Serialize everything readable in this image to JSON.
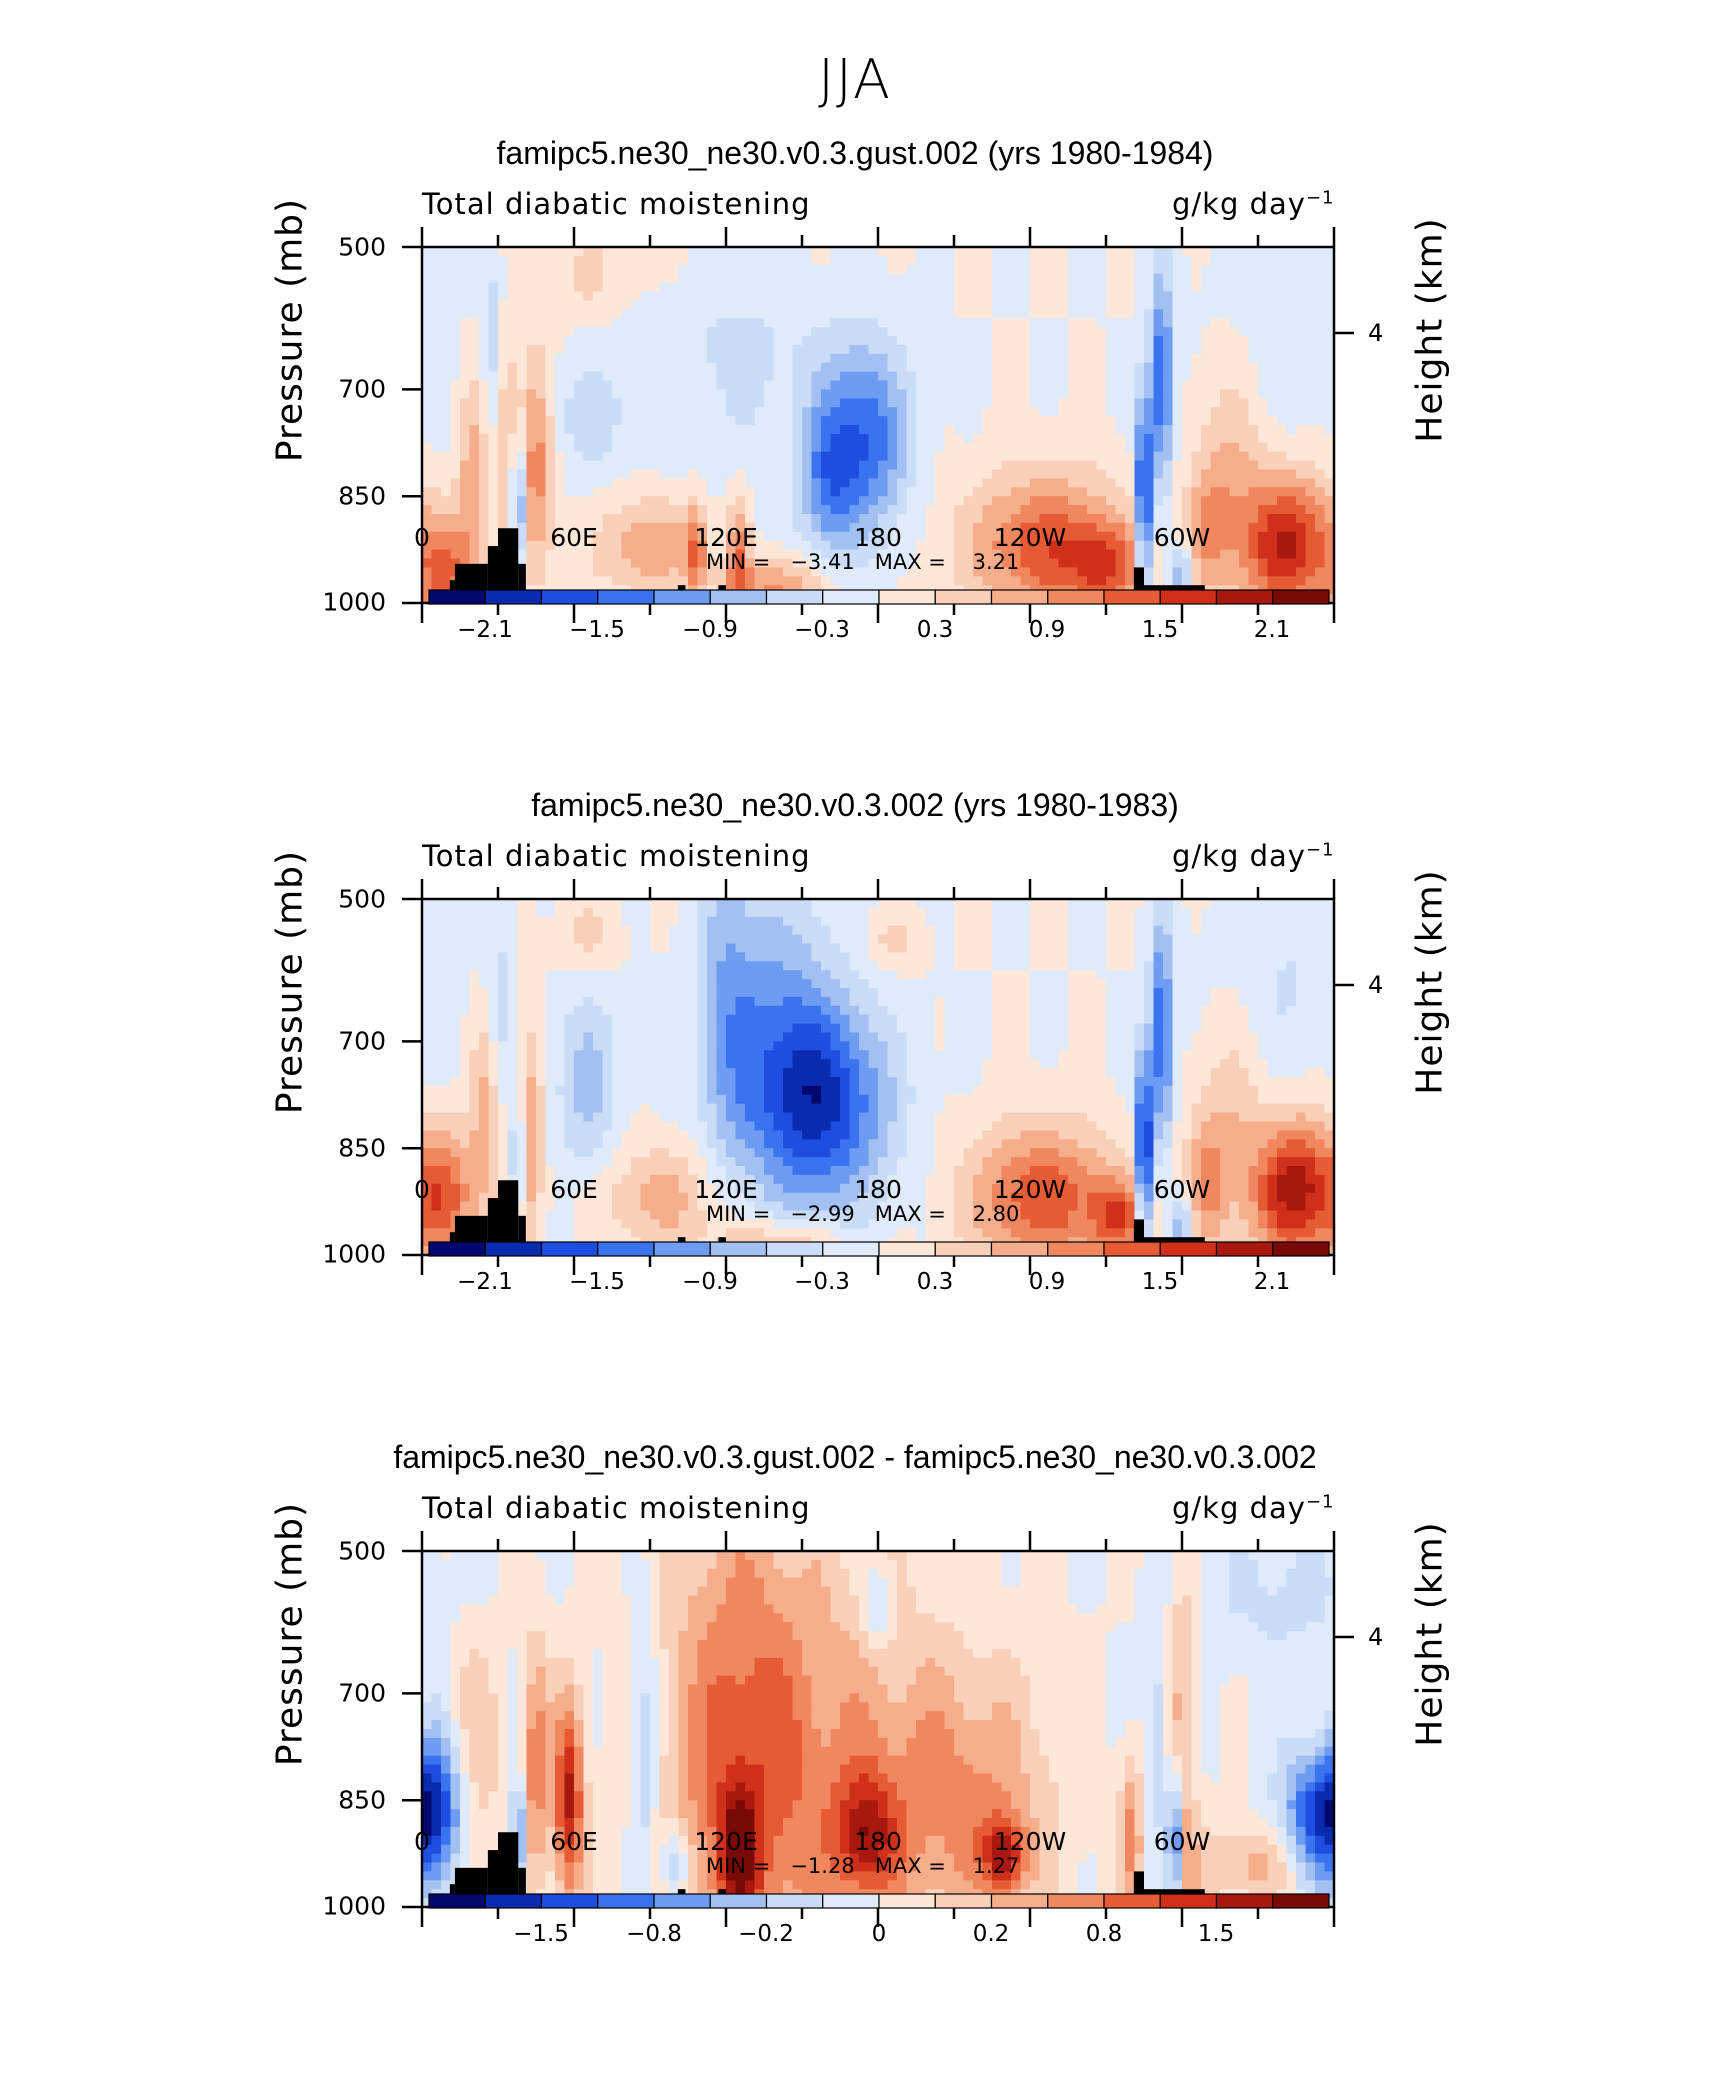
{
  "figure": {
    "title": "JJA"
  },
  "chart_data": [
    {
      "type": "heatmap",
      "title": "famipc5.ne30_ne30.v0.3.gust.002 (yrs 1980-1984)",
      "subtitle": "Total diabatic moistening",
      "units": "g/kg day",
      "units_exp": "−1",
      "xlabel": "",
      "ylabel": "Pressure (mb)",
      "ylabel_right": "Height (km)",
      "xlim": [
        0,
        360
      ],
      "ylim": [
        1000,
        500
      ],
      "x_ticks": [
        "0",
        "60E",
        "120E",
        "180",
        "120W",
        "60W"
      ],
      "y_ticks": [
        "500",
        "700",
        "850",
        "1000"
      ],
      "y_ticks_right": [
        "4"
      ],
      "min_label": "MIN =",
      "min_value": "−3.41",
      "max_label": "MAX =",
      "max_value": "3.21",
      "colorbar_labels": [
        "−2.1",
        "−1.5",
        "−0.9",
        "−0.3",
        "0.3",
        "0.9",
        "1.5",
        "2.1"
      ],
      "colorbar_colors": [
        "#04076e",
        "#0a2ab0",
        "#1e4ee0",
        "#3a73f0",
        "#6d9cf2",
        "#a3c0f2",
        "#cadcf7",
        "#dfeafb",
        "#fde7d8",
        "#fbd0b8",
        "#f6ad8c",
        "#f0875e",
        "#e65a34",
        "#d0301a",
        "#a8180f",
        "#7a0806"
      ],
      "field_stats": {
        "min": -3.41,
        "max": 3.21
      },
      "features": [
        {
          "lon": 175,
          "p": 770,
          "value": -2.0,
          "sx": 12,
          "sp": 95
        },
        {
          "lon": 160,
          "p": 830,
          "value": -1.3,
          "sx": 8,
          "sp": 80
        },
        {
          "lon": 125,
          "p": 600,
          "value": -0.6,
          "sx": 25,
          "sp": 150
        },
        {
          "lon": 65,
          "p": 740,
          "value": -0.6,
          "sx": 14,
          "sp": 60
        },
        {
          "lon": 28,
          "p": 640,
          "value": -0.7,
          "sx": 3,
          "sp": 90
        },
        {
          "lon": 38,
          "p": 860,
          "value": -2.2,
          "sx": 2,
          "sp": 60
        },
        {
          "lon": 285,
          "p": 860,
          "value": -3.2,
          "sx": 2,
          "sp": 110
        },
        {
          "lon": 292,
          "p": 690,
          "value": -2.2,
          "sx": 3,
          "sp": 110
        },
        {
          "lon": 300,
          "p": 960,
          "value": -1.4,
          "sx": 3,
          "sp": 30
        },
        {
          "lon": 340,
          "p": 620,
          "value": -0.4,
          "sx": 20,
          "sp": 120
        },
        {
          "lon": 247,
          "p": 920,
          "value": 2.0,
          "sx": 22,
          "sp": 70
        },
        {
          "lon": 270,
          "p": 950,
          "value": 1.4,
          "sx": 10,
          "sp": 40
        },
        {
          "lon": 342,
          "p": 920,
          "value": 2.6,
          "sx": 13,
          "sp": 70
        },
        {
          "lon": 10,
          "p": 960,
          "value": 1.6,
          "sx": 8,
          "sp": 60
        },
        {
          "lon": 45,
          "p": 800,
          "value": 1.6,
          "sx": 5,
          "sp": 110
        },
        {
          "lon": 33,
          "p": 770,
          "value": 0.9,
          "sx": 3,
          "sp": 120
        },
        {
          "lon": 20,
          "p": 820,
          "value": 1.1,
          "sx": 4,
          "sp": 100
        },
        {
          "lon": 90,
          "p": 920,
          "value": 1.2,
          "sx": 15,
          "sp": 50
        },
        {
          "lon": 108,
          "p": 930,
          "value": 1.4,
          "sx": 3,
          "sp": 50
        },
        {
          "lon": 125,
          "p": 930,
          "value": 1.5,
          "sx": 3,
          "sp": 60
        },
        {
          "lon": 140,
          "p": 980,
          "value": 1.4,
          "sx": 14,
          "sp": 30
        },
        {
          "lon": 310,
          "p": 900,
          "value": 1.0,
          "sx": 6,
          "sp": 70
        },
        {
          "lon": 320,
          "p": 800,
          "value": 0.8,
          "sx": 10,
          "sp": 120
        },
        {
          "lon": 120,
          "p": 520,
          "value": 0.4,
          "sx": 30,
          "sp": 60
        },
        {
          "lon": 65,
          "p": 540,
          "value": 0.5,
          "sx": 10,
          "sp": 40
        }
      ]
    },
    {
      "type": "heatmap",
      "title": "famipc5.ne30_ne30.v0.3.002 (yrs 1980-1983)",
      "subtitle": "Total diabatic moistening",
      "units": "g/kg day",
      "units_exp": "−1",
      "xlabel": "",
      "ylabel": "Pressure (mb)",
      "ylabel_right": "Height (km)",
      "xlim": [
        0,
        360
      ],
      "ylim": [
        1000,
        500
      ],
      "x_ticks": [
        "0",
        "60E",
        "120E",
        "180",
        "120W",
        "60W"
      ],
      "y_ticks": [
        "500",
        "700",
        "850",
        "1000"
      ],
      "y_ticks_right": [
        "4"
      ],
      "min_label": "MIN =",
      "min_value": "−2.99",
      "max_label": "MAX =",
      "max_value": "2.80",
      "colorbar_labels": [
        "−2.1",
        "−1.5",
        "−0.9",
        "−0.3",
        "0.3",
        "0.9",
        "1.5",
        "2.1"
      ],
      "colorbar_colors": [
        "#04076e",
        "#0a2ab0",
        "#1e4ee0",
        "#3a73f0",
        "#6d9cf2",
        "#a3c0f2",
        "#cadcf7",
        "#dfeafb",
        "#fde7d8",
        "#fbd0b8",
        "#f6ad8c",
        "#f0875e",
        "#e65a34",
        "#d0301a",
        "#a8180f",
        "#7a0806"
      ],
      "field_stats": {
        "min": -2.99,
        "max": 2.8
      },
      "features": [
        {
          "lon": 160,
          "p": 790,
          "value": -2.0,
          "sx": 18,
          "sp": 100
        },
        {
          "lon": 140,
          "p": 700,
          "value": -1.2,
          "sx": 16,
          "sp": 150
        },
        {
          "lon": 120,
          "p": 640,
          "value": -0.8,
          "sx": 8,
          "sp": 180
        },
        {
          "lon": 65,
          "p": 760,
          "value": -0.9,
          "sx": 9,
          "sp": 90
        },
        {
          "lon": 30,
          "p": 650,
          "value": -0.6,
          "sx": 4,
          "sp": 100
        },
        {
          "lon": 38,
          "p": 860,
          "value": -1.6,
          "sx": 2,
          "sp": 60
        },
        {
          "lon": 285,
          "p": 860,
          "value": -3.0,
          "sx": 2,
          "sp": 100
        },
        {
          "lon": 292,
          "p": 690,
          "value": -2.0,
          "sx": 3,
          "sp": 110
        },
        {
          "lon": 300,
          "p": 960,
          "value": -1.2,
          "sx": 3,
          "sp": 30
        },
        {
          "lon": 340,
          "p": 620,
          "value": -0.4,
          "sx": 20,
          "sp": 120
        },
        {
          "lon": 245,
          "p": 920,
          "value": 1.8,
          "sx": 20,
          "sp": 70
        },
        {
          "lon": 275,
          "p": 950,
          "value": 1.4,
          "sx": 8,
          "sp": 40
        },
        {
          "lon": 345,
          "p": 910,
          "value": 2.5,
          "sx": 12,
          "sp": 70
        },
        {
          "lon": 10,
          "p": 920,
          "value": 1.5,
          "sx": 8,
          "sp": 70
        },
        {
          "lon": 42,
          "p": 830,
          "value": 1.2,
          "sx": 4,
          "sp": 100
        },
        {
          "lon": 25,
          "p": 800,
          "value": 0.9,
          "sx": 4,
          "sp": 110
        },
        {
          "lon": 95,
          "p": 920,
          "value": 0.9,
          "sx": 18,
          "sp": 50
        },
        {
          "lon": 140,
          "p": 985,
          "value": 1.0,
          "sx": 18,
          "sp": 25
        },
        {
          "lon": 310,
          "p": 900,
          "value": 1.0,
          "sx": 6,
          "sp": 70
        },
        {
          "lon": 320,
          "p": 800,
          "value": 0.6,
          "sx": 10,
          "sp": 120
        },
        {
          "lon": 65,
          "p": 550,
          "value": 0.5,
          "sx": 8,
          "sp": 40
        },
        {
          "lon": 185,
          "p": 560,
          "value": 0.5,
          "sx": 8,
          "sp": 30
        }
      ]
    },
    {
      "type": "heatmap",
      "title": "famipc5.ne30_ne30.v0.3.gust.002 - famipc5.ne30_ne30.v0.3.002",
      "subtitle": "Total diabatic moistening",
      "units": "g/kg day",
      "units_exp": "−1",
      "xlabel": "",
      "ylabel": "Pressure (mb)",
      "ylabel_right": "Height (km)",
      "xlim": [
        0,
        360
      ],
      "ylim": [
        1000,
        500
      ],
      "x_ticks": [
        "0",
        "60E",
        "120E",
        "180",
        "120W",
        "60W"
      ],
      "y_ticks": [
        "500",
        "700",
        "850",
        "1000"
      ],
      "y_ticks_right": [
        "4"
      ],
      "min_label": "MIN =",
      "min_value": "−1.28",
      "max_label": "MAX =",
      "max_value": "1.27",
      "colorbar_labels": [
        "−1.5",
        "−0.8",
        "−0.2",
        "0",
        "0.2",
        "0.8",
        "1.5"
      ],
      "colorbar_colors": [
        "#04076e",
        "#0a2ab0",
        "#1e4ee0",
        "#3a73f0",
        "#6d9cf2",
        "#a3c0f2",
        "#cadcf7",
        "#dfeafb",
        "#fde7d8",
        "#fbd0b8",
        "#f6ad8c",
        "#f0875e",
        "#e65a34",
        "#d0301a",
        "#a8180f",
        "#7a0806"
      ],
      "field_stats": {
        "min": -1.28,
        "max": 1.27
      },
      "features": [
        {
          "lon": 6,
          "p": 870,
          "value": -0.9,
          "sx": 8,
          "sp": 80
        },
        {
          "lon": 352,
          "p": 880,
          "value": -0.8,
          "sx": 10,
          "sp": 70
        },
        {
          "lon": 38,
          "p": 900,
          "value": -0.8,
          "sx": 2,
          "sp": 60
        },
        {
          "lon": 100,
          "p": 940,
          "value": -0.6,
          "sx": 4,
          "sp": 40
        },
        {
          "lon": 88,
          "p": 780,
          "value": -0.4,
          "sx": 4,
          "sp": 140
        },
        {
          "lon": 180,
          "p": 580,
          "value": -0.4,
          "sx": 4,
          "sp": 40
        },
        {
          "lon": 297,
          "p": 910,
          "value": -1.0,
          "sx": 2,
          "sp": 70
        },
        {
          "lon": 290,
          "p": 760,
          "value": -0.3,
          "sx": 3,
          "sp": 120
        },
        {
          "lon": 340,
          "p": 560,
          "value": -0.2,
          "sx": 25,
          "sp": 80
        },
        {
          "lon": 58,
          "p": 850,
          "value": 1.0,
          "sx": 4,
          "sp": 100
        },
        {
          "lon": 45,
          "p": 800,
          "value": 0.6,
          "sx": 4,
          "sp": 120
        },
        {
          "lon": 125,
          "p": 780,
          "value": 0.5,
          "sx": 20,
          "sp": 280
        },
        {
          "lon": 160,
          "p": 820,
          "value": 0.4,
          "sx": 40,
          "sp": 220
        },
        {
          "lon": 125,
          "p": 920,
          "value": 0.8,
          "sx": 5,
          "sp": 60
        },
        {
          "lon": 175,
          "p": 900,
          "value": 0.7,
          "sx": 8,
          "sp": 60
        },
        {
          "lon": 230,
          "p": 930,
          "value": 0.8,
          "sx": 6,
          "sp": 40
        },
        {
          "lon": 215,
          "p": 850,
          "value": 0.4,
          "sx": 25,
          "sp": 120
        },
        {
          "lon": 280,
          "p": 900,
          "value": 0.5,
          "sx": 3,
          "sp": 80
        },
        {
          "lon": 300,
          "p": 780,
          "value": 0.4,
          "sx": 4,
          "sp": 200
        },
        {
          "lon": 330,
          "p": 940,
          "value": 0.4,
          "sx": 20,
          "sp": 40
        },
        {
          "lon": 20,
          "p": 800,
          "value": 0.3,
          "sx": 8,
          "sp": 140
        }
      ]
    }
  ],
  "topography": {
    "color": "#000000",
    "blocks": [
      {
        "lon0": 11,
        "lon1": 13,
        "p": 968
      },
      {
        "lon0": 13,
        "lon1": 26,
        "p": 945
      },
      {
        "lon0": 26,
        "lon1": 30,
        "p": 920
      },
      {
        "lon0": 30,
        "lon1": 38,
        "p": 895
      },
      {
        "lon0": 38,
        "lon1": 41,
        "p": 945
      },
      {
        "lon0": 101,
        "lon1": 104,
        "p": 975
      },
      {
        "lon0": 117,
        "lon1": 120,
        "p": 975
      },
      {
        "lon0": 281,
        "lon1": 285,
        "p": 950
      },
      {
        "lon0": 285,
        "lon1": 309,
        "p": 975
      }
    ]
  }
}
